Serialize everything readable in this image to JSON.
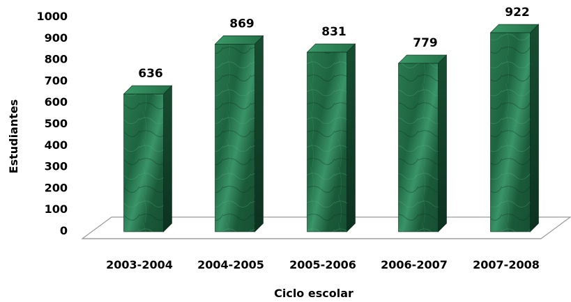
{
  "chart_data": {
    "type": "bar",
    "style": "3d-column",
    "title": "",
    "xlabel": "Ciclo escolar",
    "ylabel": "Estudiantes",
    "categories": [
      "2003-2004",
      "2004-2005",
      "2005-2006",
      "2006-2007",
      "2007-2008"
    ],
    "values": [
      636,
      869,
      831,
      779,
      922
    ],
    "ylim": [
      0,
      1000
    ],
    "yticks": [
      0,
      100,
      200,
      300,
      400,
      500,
      600,
      700,
      800,
      900,
      1000
    ],
    "grid": false,
    "legend": "none",
    "colors": {
      "bar_front": "#1f6b43",
      "bar_side": "#0f3d25",
      "bar_top": "#2f8a5a",
      "floor": "#999999"
    }
  }
}
